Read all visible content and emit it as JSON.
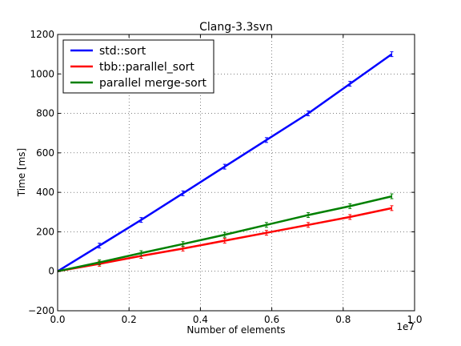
{
  "chart_data": {
    "type": "line",
    "title": "Clang-3.3svn",
    "xlabel": "Number of elements",
    "ylabel": "Time [ms]",
    "x_offset_label": "1e7",
    "xlim": [
      0.0,
      1.0
    ],
    "ylim": [
      -200,
      1200
    ],
    "x_ticks": [
      0.0,
      0.2,
      0.4,
      0.6,
      0.8,
      1.0
    ],
    "x_tick_labels": [
      "0.0",
      "0.2",
      "0.4",
      "0.6",
      "0.8",
      "1.0"
    ],
    "y_ticks": [
      -200,
      0,
      200,
      400,
      600,
      800,
      1000,
      1200
    ],
    "y_tick_labels": [
      "−200",
      "0",
      "200",
      "400",
      "600",
      "800",
      "1000",
      "1200"
    ],
    "grid": true,
    "legend_position": "top-left",
    "x": [
      0.0,
      0.117,
      0.234,
      0.351,
      0.468,
      0.585,
      0.702,
      0.819,
      0.936
    ],
    "series": [
      {
        "name": "std::sort",
        "color": "#0000ff",
        "values": [
          0,
          130,
          260,
          395,
          530,
          665,
          800,
          950,
          1100
        ]
      },
      {
        "name": "tbb::parallel_sort",
        "color": "#ff0000",
        "values": [
          0,
          38,
          78,
          115,
          155,
          195,
          235,
          275,
          320
        ]
      },
      {
        "name": "parallel merge-sort",
        "color": "#008000",
        "values": [
          0,
          45,
          92,
          138,
          185,
          235,
          285,
          330,
          380
        ]
      }
    ]
  }
}
